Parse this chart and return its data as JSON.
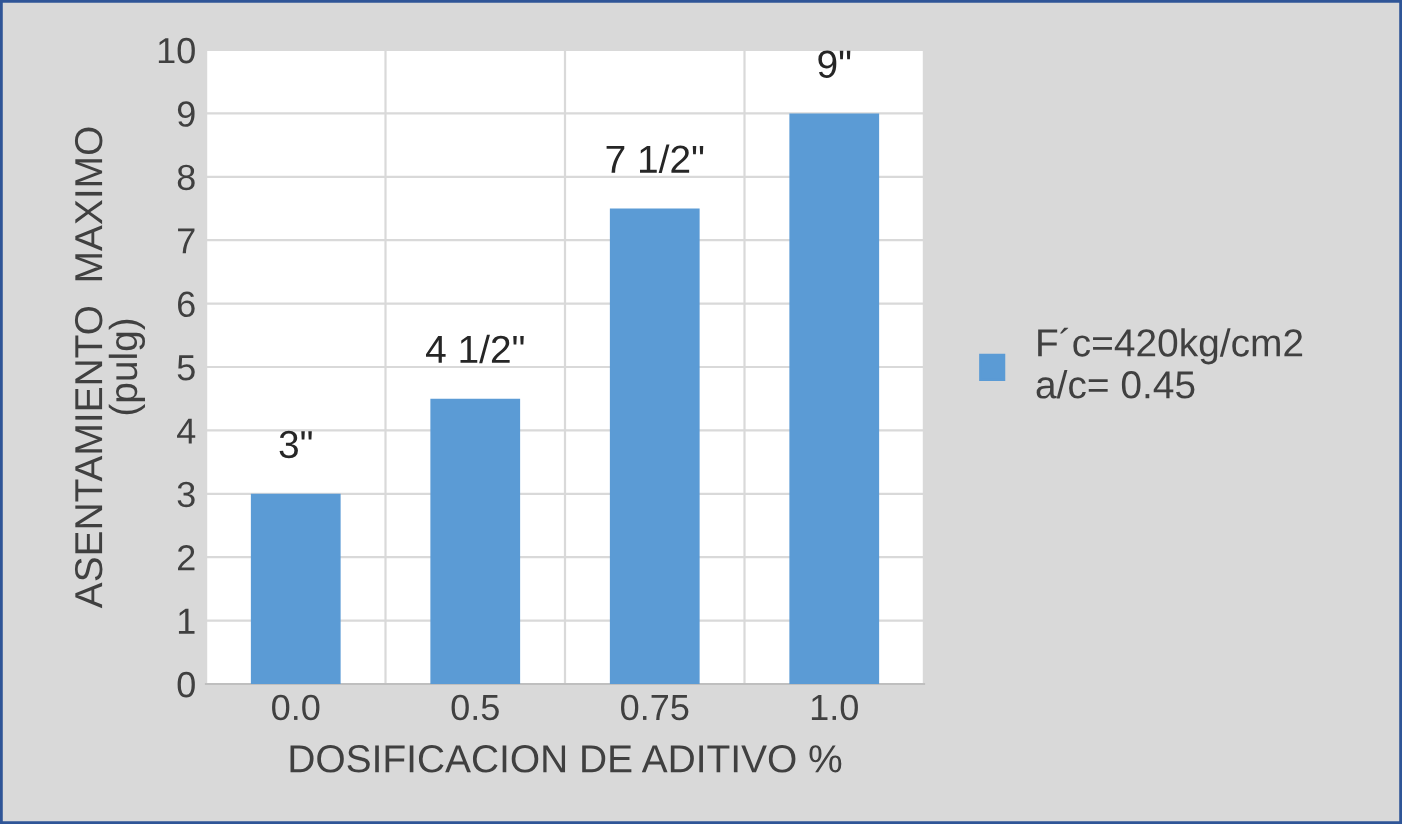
{
  "chart_data": {
    "type": "bar",
    "xlabel": "DOSIFICACION DE ADITIVO %",
    "ylabel": "ASENTAMIENTO  MAXIMO\n(pulg)",
    "categories": [
      "0.0",
      "0.5",
      "0.75",
      "1.0"
    ],
    "series": [
      {
        "name": "F´c=420kg/cm2\na/c= 0.45",
        "color": "#5b9bd5",
        "values": [
          3,
          4.5,
          7.5,
          9
        ],
        "value_labels": [
          "3\"",
          "4 1/2\"",
          "7 1/2\"",
          "9\""
        ]
      }
    ],
    "ylim": [
      0,
      10
    ],
    "yticks": [
      0,
      1,
      2,
      3,
      4,
      5,
      6,
      7,
      8,
      9,
      10
    ],
    "grid": true,
    "legend": "right"
  }
}
